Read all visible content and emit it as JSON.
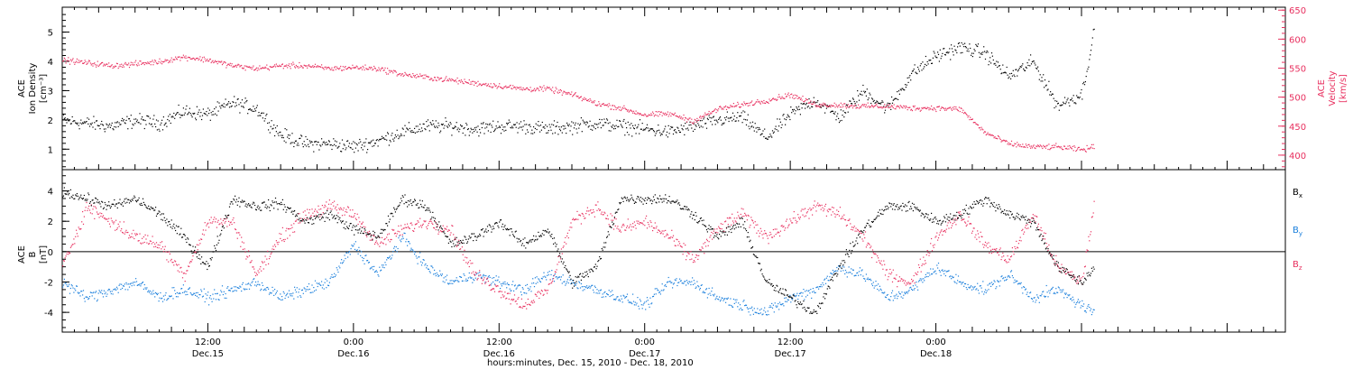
{
  "chart_data": [
    {
      "type": "scatter",
      "panel": "top",
      "ylabel_left": [
        "ACE",
        "Ion Density",
        "[cm⁻³]"
      ],
      "ylabel_right": [
        "ACE",
        "Velocity",
        "[km/s]"
      ],
      "left_ticks": [
        "1",
        "2",
        "3",
        "4",
        "5"
      ],
      "right_ticks": [
        "400",
        "450",
        "500",
        "550",
        "600",
        "650"
      ],
      "ylim_left": [
        0.3,
        5.85
      ],
      "ylim_right": [
        375,
        655
      ],
      "colors": {
        "density": "#000000",
        "velocity": "#e8305f"
      },
      "series": [
        {
          "name": "density",
          "axis": "left",
          "x": [
            0,
            2,
            4,
            6,
            8,
            10,
            12,
            14,
            16,
            18,
            20,
            22,
            24,
            26,
            28,
            30,
            32,
            34,
            36,
            38,
            40,
            42,
            44,
            46,
            48,
            50,
            52,
            54,
            56,
            58,
            60,
            62,
            64,
            66,
            68,
            70,
            72,
            74,
            76,
            78,
            80,
            82,
            84,
            85
          ],
          "y": [
            2.0,
            1.9,
            1.8,
            2.0,
            1.9,
            2.3,
            2.2,
            2.6,
            2.4,
            1.5,
            1.2,
            1.2,
            1.1,
            1.3,
            1.6,
            1.8,
            1.8,
            1.7,
            1.8,
            1.8,
            1.7,
            1.8,
            1.9,
            1.8,
            1.7,
            1.6,
            1.8,
            2.0,
            2.1,
            1.4,
            2.2,
            2.7,
            2.1,
            3.0,
            2.4,
            3.6,
            4.2,
            4.5,
            4.3,
            3.5,
            4.0,
            2.5,
            2.9,
            5.0
          ],
          "spread": 0.35
        },
        {
          "name": "velocity",
          "axis": "right",
          "x": [
            0,
            2,
            4,
            6,
            8,
            10,
            12,
            14,
            16,
            18,
            20,
            22,
            24,
            26,
            28,
            30,
            32,
            34,
            36,
            38,
            40,
            42,
            44,
            46,
            48,
            50,
            52,
            54,
            56,
            58,
            60,
            62,
            64,
            66,
            68,
            70,
            72,
            74,
            76,
            78,
            80,
            82,
            84,
            85
          ],
          "y": [
            565,
            560,
            555,
            558,
            562,
            570,
            565,
            555,
            550,
            555,
            555,
            550,
            552,
            550,
            540,
            535,
            530,
            525,
            520,
            515,
            515,
            505,
            490,
            482,
            470,
            472,
            460,
            480,
            488,
            495,
            505,
            488,
            487,
            485,
            485,
            482,
            482,
            480,
            440,
            420,
            415,
            415,
            410,
            415
          ],
          "spread": 7
        }
      ]
    },
    {
      "type": "scatter",
      "panel": "bottom",
      "ylabel": [
        "ACE",
        "B",
        "[nT]"
      ],
      "ticks": [
        "-4",
        "-2",
        "0",
        "2",
        "4"
      ],
      "ylim": [
        -5.3,
        5.4
      ],
      "zero_line": true,
      "legend": [
        {
          "name": "Bx",
          "base": "B",
          "sub": "x",
          "color": "#000000"
        },
        {
          "name": "By",
          "base": "B",
          "sub": "y",
          "color": "#1a7fdc"
        },
        {
          "name": "Bz",
          "base": "B",
          "sub": "z",
          "color": "#e8305f"
        }
      ],
      "series": [
        {
          "name": "Bx",
          "x": [
            0,
            2,
            4,
            6,
            8,
            10,
            12,
            14,
            16,
            18,
            20,
            22,
            24,
            26,
            28,
            30,
            32,
            34,
            36,
            38,
            40,
            42,
            44,
            46,
            48,
            50,
            52,
            54,
            56,
            58,
            60,
            62,
            64,
            66,
            68,
            70,
            72,
            74,
            76,
            78,
            80,
            82,
            84,
            85
          ],
          "y": [
            4.0,
            3.5,
            3.0,
            3.5,
            2.5,
            1.0,
            -1.0,
            3.5,
            3.0,
            3.2,
            2.0,
            2.5,
            1.5,
            1.0,
            3.5,
            3.0,
            0.5,
            1.0,
            2.0,
            0.5,
            1.5,
            -2.0,
            -1.0,
            3.5,
            3.5,
            3.5,
            2.5,
            1.0,
            2.0,
            -2.0,
            -3.0,
            -4.0,
            -1.0,
            1.5,
            3.0,
            3.0,
            2.0,
            2.5,
            3.5,
            2.5,
            2.0,
            -1.0,
            -2.0,
            -1.0
          ],
          "spread": 0.5
        },
        {
          "name": "By",
          "x": [
            0,
            2,
            4,
            6,
            8,
            10,
            12,
            14,
            16,
            18,
            20,
            22,
            24,
            26,
            28,
            30,
            32,
            34,
            36,
            38,
            40,
            42,
            44,
            46,
            48,
            50,
            52,
            54,
            56,
            58,
            60,
            62,
            64,
            66,
            68,
            70,
            72,
            74,
            76,
            78,
            80,
            82,
            84,
            85
          ],
          "y": [
            -2.0,
            -3.0,
            -2.5,
            -2.0,
            -3.0,
            -2.5,
            -3.0,
            -2.5,
            -2.0,
            -3.0,
            -2.5,
            -2.0,
            0.5,
            -1.5,
            1.0,
            -1.0,
            -2.0,
            -1.5,
            -2.0,
            -2.5,
            -1.5,
            -2.0,
            -2.5,
            -3.0,
            -3.5,
            -2.0,
            -2.0,
            -3.0,
            -3.5,
            -4.0,
            -3.0,
            -2.5,
            -1.0,
            -1.5,
            -3.0,
            -2.5,
            -1.0,
            -2.0,
            -2.5,
            -1.5,
            -3.0,
            -2.5,
            -3.5,
            -4.0
          ],
          "spread": 0.55
        },
        {
          "name": "Bz",
          "x": [
            0,
            2,
            4,
            6,
            8,
            10,
            12,
            14,
            16,
            18,
            20,
            22,
            24,
            26,
            28,
            30,
            32,
            34,
            36,
            38,
            40,
            42,
            44,
            46,
            48,
            50,
            52,
            54,
            56,
            58,
            60,
            62,
            64,
            66,
            68,
            70,
            72,
            74,
            76,
            78,
            80,
            82,
            84,
            85
          ],
          "y": [
            -1.0,
            3.0,
            2.0,
            1.0,
            0.5,
            -1.5,
            2.0,
            2.0,
            -1.5,
            1.0,
            2.5,
            3.0,
            2.5,
            0.5,
            1.5,
            2.0,
            1.5,
            -1.5,
            -2.5,
            -3.5,
            -2.5,
            2.0,
            3.0,
            1.5,
            2.0,
            1.0,
            -0.5,
            1.5,
            2.5,
            1.0,
            2.0,
            3.0,
            2.5,
            1.0,
            -1.5,
            -2.0,
            1.0,
            2.5,
            0.5,
            -0.5,
            2.5,
            -1.0,
            -2.0,
            3.0
          ],
          "spread": 0.65
        }
      ]
    }
  ],
  "time_axis": {
    "x_range_hours": [
      0,
      100.8
    ],
    "ticks": [
      {
        "hour": 12,
        "time": "12:00",
        "day": "Dec.15"
      },
      {
        "hour": 24,
        "time": "0:00",
        "day": "Dec.16"
      },
      {
        "hour": 36,
        "time": "12:00",
        "day": "Dec.16"
      },
      {
        "hour": 48,
        "time": "0:00",
        "day": "Dec.17"
      },
      {
        "hour": 60,
        "time": "12:00",
        "day": "Dec.17"
      },
      {
        "hour": 72,
        "time": "0:00",
        "day": "Dec.18"
      }
    ],
    "xlabel": "hours:minutes, Dec. 15, 2010 - Dec. 18, 2010"
  }
}
